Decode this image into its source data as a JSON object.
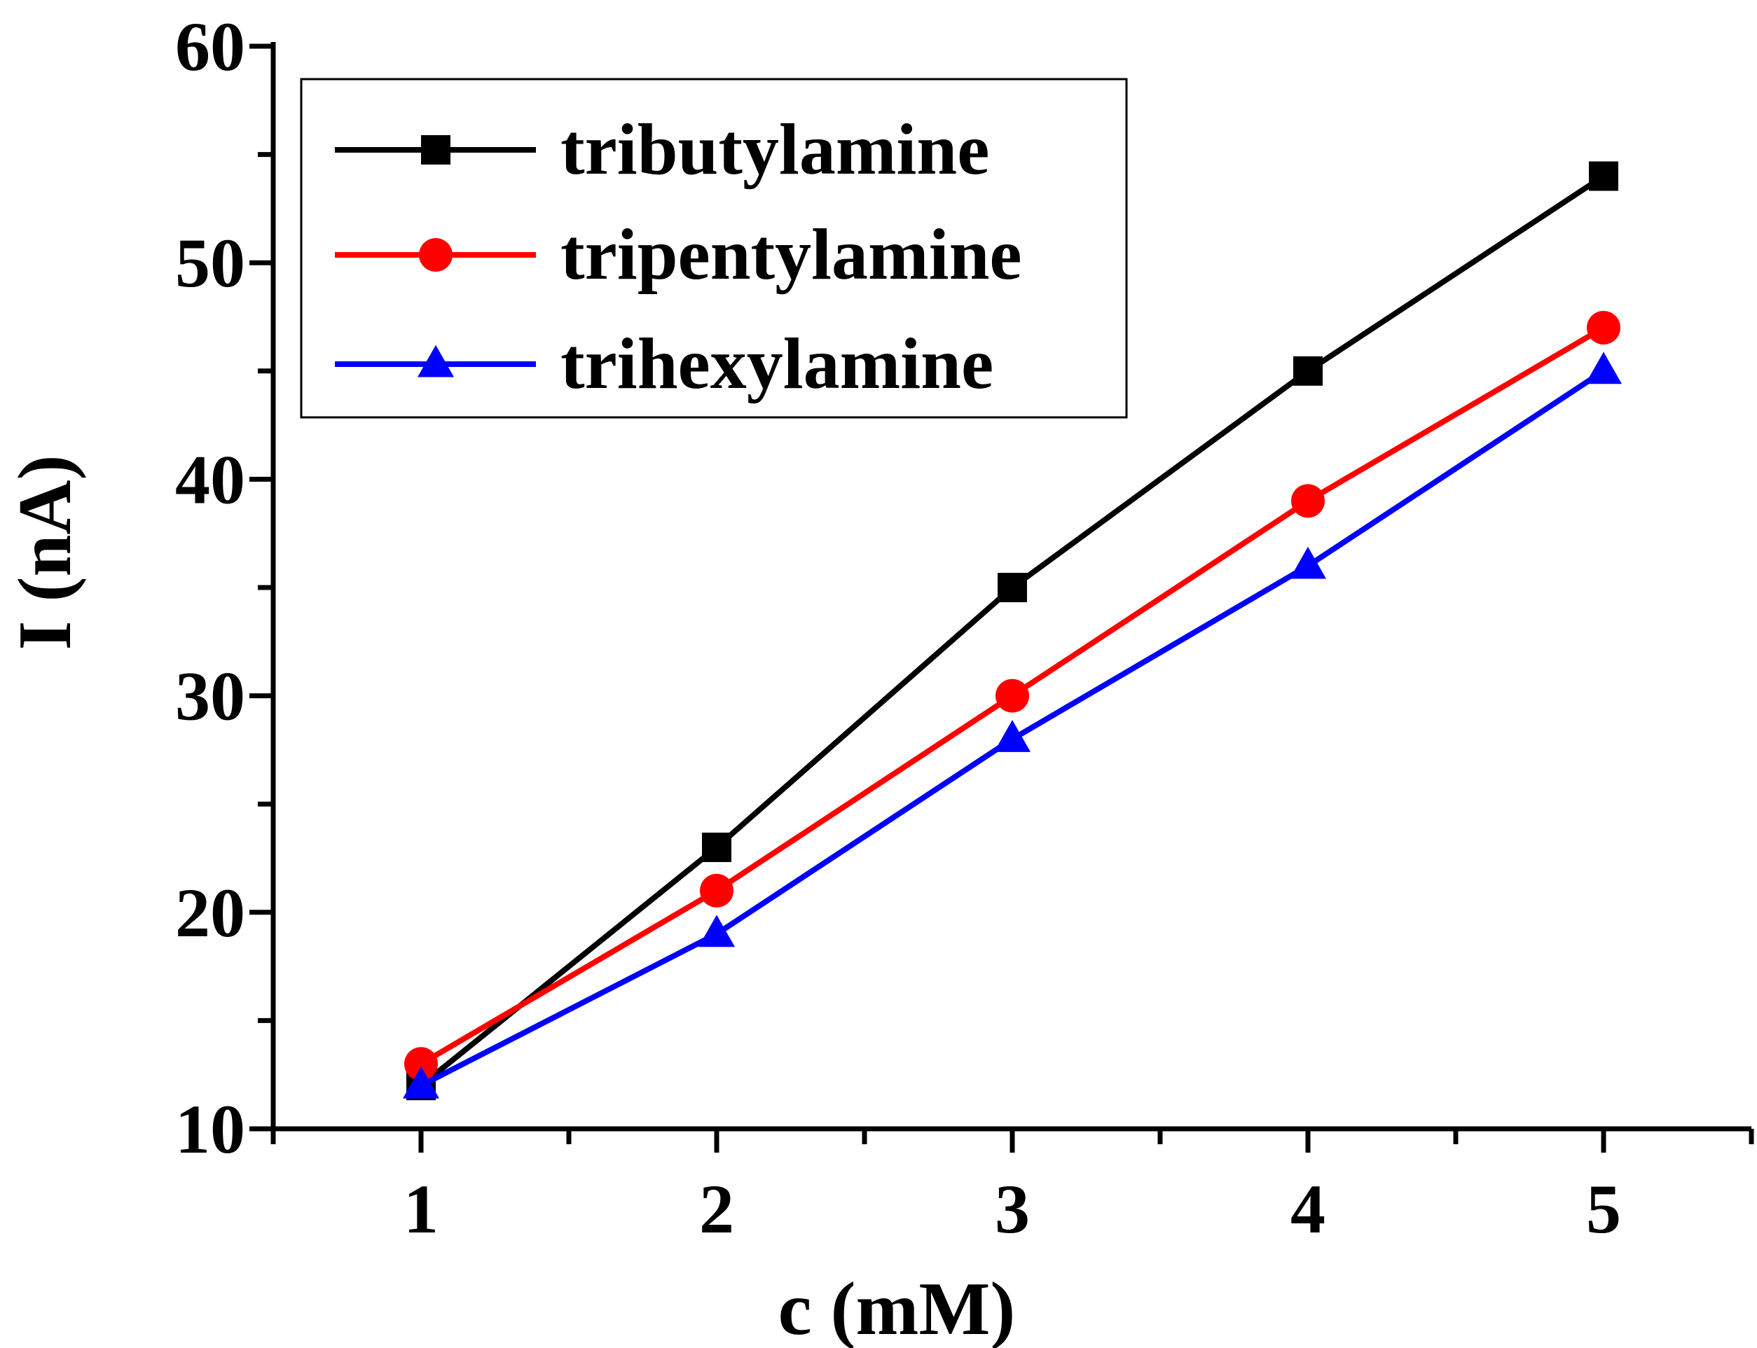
{
  "chart_data": {
    "type": "line",
    "title": "",
    "xlabel": "c (mM)",
    "ylabel": "I (nA)",
    "xlim": [
      0.5,
      5.5
    ],
    "ylim": [
      10,
      60
    ],
    "x": [
      1,
      2,
      3,
      4,
      5
    ],
    "x_ticks": [
      "1",
      "2",
      "3",
      "4",
      "5"
    ],
    "y_ticks": [
      "10",
      "20",
      "30",
      "40",
      "50",
      "60"
    ],
    "grid": false,
    "legend_position": "top-left",
    "series": [
      {
        "name": "tributylamine",
        "color": "#000000",
        "marker": "square",
        "values": [
          12,
          23,
          35,
          45,
          54
        ]
      },
      {
        "name": "tripentylamine",
        "color": "#ff0000",
        "marker": "circle",
        "values": [
          13,
          21,
          30,
          39,
          47
        ]
      },
      {
        "name": "trihexylamine",
        "color": "#0000ff",
        "marker": "triangle",
        "values": [
          12,
          19,
          28,
          36,
          45
        ]
      }
    ]
  }
}
